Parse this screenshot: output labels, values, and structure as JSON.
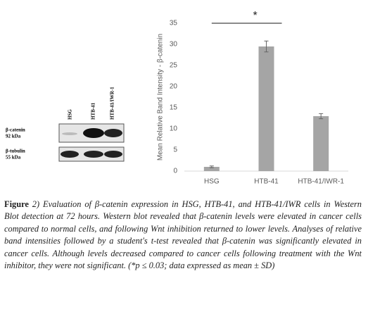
{
  "chart_data": {
    "type": "bar",
    "ylabel": "Mean Relative Band Intensity - β-catenin",
    "categories": [
      "HSG",
      "HTB-41",
      "HTB-41/IWR-1"
    ],
    "values": [
      1.0,
      29.5,
      13.0
    ],
    "errors": [
      0.2,
      1.3,
      0.6
    ],
    "color": "#a5a5a5",
    "ylim": [
      0,
      35
    ],
    "yticks": [
      0,
      5,
      10,
      15,
      20,
      25,
      30,
      35
    ],
    "grid": false,
    "significance": {
      "label": "*",
      "from": 0,
      "to": 1
    }
  },
  "blot": {
    "lanes": [
      "HSG",
      "HTB-41",
      "HTB-41/IWR-1"
    ],
    "rows": [
      {
        "protein": "β-catenin",
        "size": "92 kDa"
      },
      {
        "protein": "β-tubulin",
        "size": "55 kDa"
      }
    ]
  },
  "caption": {
    "label": "Figure",
    "text": "2) Evaluation of β-catenin expression in HSG, HTB-41, and HTB-41/IWR cells in Western Blot detection at 72 hours. Western blot revealed that β-catenin levels were elevated in cancer cells compared to normal cells, and following Wnt inhibition returned to lower levels. Analyses of relative band intensities followed by a student's t-test revealed that β-catenin was significantly elevated in cancer cells. Although levels decreased compared to cancer cells following treatment with the Wnt inhibitor, they were not significant. (*p ≤ 0.03; data expressed as mean ± SD)"
  }
}
